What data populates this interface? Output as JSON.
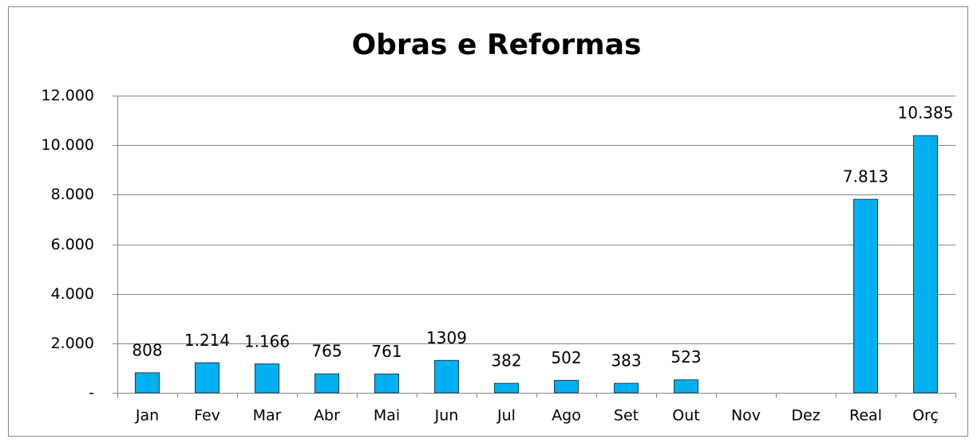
{
  "chart_data": {
    "type": "bar",
    "title": "Obras e Reformas",
    "categories": [
      "Jan",
      "Fev",
      "Mar",
      "Abr",
      "Mai",
      "Jun",
      "Jul",
      "Ago",
      "Set",
      "Out",
      "Nov",
      "Dez",
      "Real",
      "Orç"
    ],
    "values": [
      808,
      1214,
      1166,
      765,
      761,
      1309,
      382,
      502,
      383,
      523,
      null,
      null,
      7813,
      10385
    ],
    "value_labels": [
      "808",
      "1.214",
      "1.166",
      "765",
      "761",
      "1309",
      "382",
      "502",
      "383",
      "523",
      null,
      null,
      "7.813",
      "10.385"
    ],
    "color": "#00b0f0",
    "ylim": [
      0,
      12000
    ],
    "yticks": [
      {
        "value": 0,
        "label": "-"
      },
      {
        "value": 2000,
        "label": "2.000"
      },
      {
        "value": 4000,
        "label": "4.000"
      },
      {
        "value": 6000,
        "label": "6.000"
      },
      {
        "value": 8000,
        "label": "8.000"
      },
      {
        "value": 10000,
        "label": "10.000"
      },
      {
        "value": 12000,
        "label": "12.000"
      }
    ],
    "grid": true
  }
}
